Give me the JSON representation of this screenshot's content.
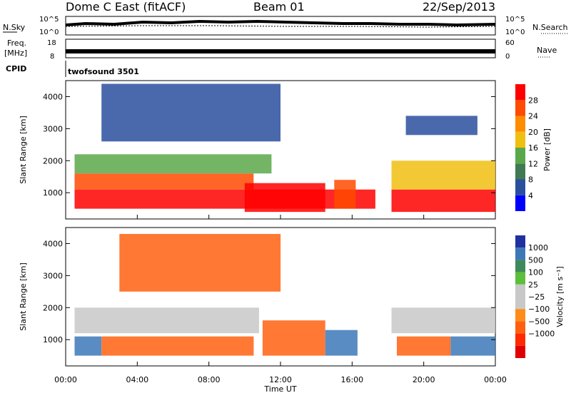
{
  "header": {
    "station": "Dome C East (fitACF)",
    "beam": "Beam 01",
    "date": "22/Sep/2013"
  },
  "panels": {
    "nsky_label": "N.Sky",
    "nsky_ticks": [
      "10^5",
      "10^0"
    ],
    "nsearch_label": "N.Search",
    "nsearch_ticks": [
      "10^5",
      "10^0"
    ],
    "freq_label_1": "Freq.",
    "freq_label_2": "[MHz]",
    "freq_ticks": [
      "18",
      "8"
    ],
    "nave_label": "Nave",
    "nave_ticks": [
      "60",
      "0"
    ],
    "cpid_label": "CPID",
    "cpid_value": "twofsound 3501"
  },
  "colors": {
    "power_scale": [
      "#0000ff",
      "#2a4f9f",
      "#3f7a54",
      "#5aa84a",
      "#f0c010",
      "#ff8c00",
      "#ff4a00",
      "#ff0000"
    ],
    "velocity_scale": [
      "#2030a0",
      "#3c78b8",
      "#3f8a5a",
      "#5bbf3a",
      "#c8c8c8",
      "#c8c8c8",
      "#ff8c1a",
      "#ff6010",
      "#ff2a00",
      "#e00000"
    ]
  },
  "chart_data": [
    {
      "type": "heatmap",
      "name": "power",
      "xlabel": "",
      "ylabel": "Slant Range [km]",
      "x_ticks": [
        "00:00",
        "04:00",
        "08:00",
        "12:00",
        "16:00",
        "20:00",
        "00:00"
      ],
      "x_hours": [
        0,
        4,
        8,
        12,
        16,
        20,
        24
      ],
      "xlim": [
        0,
        24
      ],
      "y_ticks": [
        1000,
        2000,
        3000,
        4000
      ],
      "ylim": [
        180,
        4500
      ],
      "colorbar_label": "Power [dB]",
      "colorbar_ticks": [
        4,
        8,
        12,
        16,
        20,
        24,
        28
      ],
      "colorbar_range": [
        0,
        32
      ],
      "regions": [
        {
          "x": [
            0.5,
            17.3
          ],
          "y": [
            500,
            1100
          ],
          "level": 28
        },
        {
          "x": [
            0.5,
            10.5
          ],
          "y": [
            1100,
            1600
          ],
          "level": 24
        },
        {
          "x": [
            0.5,
            11.5
          ],
          "y": [
            1600,
            2200
          ],
          "level": 14
        },
        {
          "x": [
            10,
            14.5
          ],
          "y": [
            400,
            1300
          ],
          "level": 28
        },
        {
          "x": [
            15,
            16.2
          ],
          "y": [
            500,
            1400
          ],
          "level": 26
        },
        {
          "x": [
            18.2,
            24
          ],
          "y": [
            400,
            1100
          ],
          "level": 28
        },
        {
          "x": [
            18.2,
            24
          ],
          "y": [
            1100,
            2000
          ],
          "level": 18
        },
        {
          "x": [
            2,
            12
          ],
          "y": [
            2600,
            4400
          ],
          "level": 6
        },
        {
          "x": [
            19,
            23
          ],
          "y": [
            2800,
            3400
          ],
          "level": 5
        }
      ]
    },
    {
      "type": "heatmap",
      "name": "velocity",
      "xlabel": "Time UT",
      "ylabel": "Slant Range [km]",
      "x_ticks": [
        "00:00",
        "04:00",
        "08:00",
        "12:00",
        "16:00",
        "20:00",
        "00:00"
      ],
      "x_hours": [
        0,
        4,
        8,
        12,
        16,
        20,
        24
      ],
      "xlim": [
        0,
        24
      ],
      "y_ticks": [
        1000,
        2000,
        3000,
        4000
      ],
      "ylim": [
        180,
        4500
      ],
      "colorbar_label": "Velocity [m s⁻¹]",
      "colorbar_ticks": [
        "1000",
        "500",
        "100",
        "25",
        "−25",
        "−100",
        "−500",
        "−1000"
      ],
      "regions": [
        {
          "x": [
            0.5,
            10.8
          ],
          "y": [
            1200,
            2000
          ],
          "value": 0
        },
        {
          "x": [
            2,
            10.5
          ],
          "y": [
            500,
            1100
          ],
          "value": -300
        },
        {
          "x": [
            0.5,
            2
          ],
          "y": [
            500,
            1100
          ],
          "value": 150
        },
        {
          "x": [
            11,
            14.5
          ],
          "y": [
            500,
            1600
          ],
          "value": -200
        },
        {
          "x": [
            14.5,
            16.3
          ],
          "y": [
            500,
            1300
          ],
          "value": 200
        },
        {
          "x": [
            18.2,
            24
          ],
          "y": [
            1200,
            2000
          ],
          "value": 0
        },
        {
          "x": [
            18.5,
            21.5
          ],
          "y": [
            500,
            1100
          ],
          "value": -200
        },
        {
          "x": [
            21.5,
            24
          ],
          "y": [
            500,
            1100
          ],
          "value": 150
        },
        {
          "x": [
            3,
            12
          ],
          "y": [
            2500,
            4300
          ],
          "value": -150
        }
      ]
    }
  ]
}
